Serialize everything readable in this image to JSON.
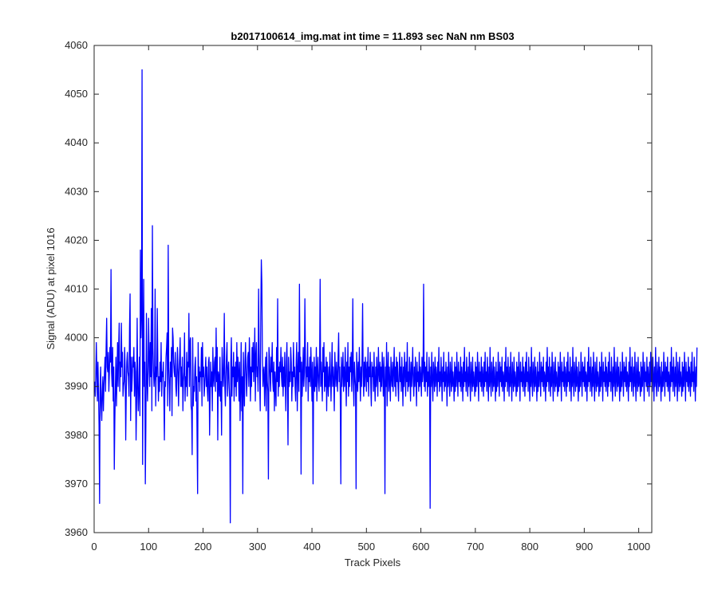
{
  "chart_data": {
    "type": "line",
    "title": "b2017100614_img.mat int time = 11.893 sec  NaN nm BS03",
    "xlabel": "Track Pixels",
    "ylabel": "Signal (ADU) at pixel 1016",
    "xlim": [
      0,
      1024
    ],
    "ylim": [
      3960,
      4060
    ],
    "xticks": [
      0,
      100,
      200,
      300,
      400,
      500,
      600,
      700,
      800,
      900,
      1000
    ],
    "yticks": [
      3960,
      3970,
      3980,
      3990,
      4000,
      4010,
      4020,
      4030,
      4040,
      4050,
      4060
    ],
    "grid": false,
    "series": [
      {
        "color": "#0000ff",
        "x_start": 1,
        "x_step": 1,
        "values": [
          3991,
          3988,
          3992,
          3999,
          3993,
          3987,
          3995,
          3989,
          3982,
          3966,
          3990,
          3994,
          3986,
          3983,
          3989,
          3992,
          3985,
          3990,
          3993,
          3996,
          3989,
          3998,
          4004,
          3994,
          3993,
          3997,
          3989,
          3993,
          3998,
          3995,
          4014,
          3993,
          3990,
          3998,
          3987,
          3994,
          3973,
          3983,
          3990,
          3996,
          3986,
          3992,
          3999,
          3990,
          3998,
          4003,
          3989,
          3995,
          3992,
          4003,
          3994,
          3997,
          3988,
          3990,
          3991,
          3998,
          3993,
          3979,
          3989,
          3995,
          3997,
          3993,
          3992,
          3988,
          4002,
          4009,
          3983,
          3996,
          3989,
          3992,
          3996,
          3994,
          3998,
          3988,
          3995,
          3993,
          3979,
          3987,
          4004,
          3990,
          3985,
          3990,
          3996,
          3984,
          4018,
          4000,
          4005,
          4055,
          3974,
          3996,
          4012,
          3990,
          3995,
          3970,
          3982,
          4005,
          3992,
          3987,
          3993,
          4004,
          3996,
          3990,
          3999,
          3992,
          4006,
          3985,
          4023,
          3998,
          3993,
          3990,
          3992,
          4010,
          3986,
          3994,
          3992,
          4006,
          3994,
          3987,
          3992,
          3989,
          3995,
          3991,
          3999,
          3988,
          3993,
          3992,
          3995,
          3988,
          3979,
          3991,
          3990,
          3996,
          3998,
          4001,
          3986,
          4019,
          3994,
          3990,
          3985,
          3995,
          3992,
          3998,
          3984,
          4002,
          4000,
          3995,
          3993,
          3992,
          3997,
          3990,
          3988,
          3993,
          3998,
          3993,
          3986,
          3993,
          3996,
          4000,
          3990,
          3994,
          3990,
          3996,
          3985,
          3991,
          3993,
          4001,
          3987,
          3992,
          3990,
          3997,
          3988,
          3995,
          3994,
          4005,
          3990,
          3999,
          4000,
          3986,
          3985,
          3976,
          4000,
          3986,
          3990,
          3989,
          3994,
          3996,
          3987,
          3992,
          3980,
          3968,
          3999,
          3991,
          3994,
          3989,
          3993,
          3992,
          3998,
          3986,
          3999,
          3992,
          3994,
          3988,
          3990,
          3993,
          3996,
          3990,
          3994,
          3989,
          3987,
          3995,
          3996,
          3980,
          3988,
          3995,
          3990,
          3993,
          3985,
          3998,
          3992,
          3990,
          3995,
          3996,
          3989,
          4002,
          3991,
          3998,
          3979,
          3993,
          3992,
          3988,
          3996,
          3987,
          3991,
          3980,
          3998,
          3994,
          3990,
          3993,
          4005,
          3990,
          3986,
          3992,
          3996,
          3999,
          3988,
          3993,
          3995,
          3990,
          3987,
          3962,
          3995,
          4000,
          3988,
          3994,
          3992,
          3997,
          3987,
          3994,
          3990,
          3995,
          3988,
          3999,
          3991,
          3996,
          3993,
          3987,
          3995,
          3983,
          3990,
          3999,
          3985,
          3992,
          3968,
          3997,
          3991,
          3986,
          3995,
          3999,
          3993,
          3988,
          3992,
          3996,
          3997,
          3990,
          4000,
          3995,
          3987,
          3994,
          3990,
          3998,
          3993,
          3999,
          3991,
          3995,
          4002,
          3987,
          3996,
          3999,
          3992,
          3994,
          3989,
          4010,
          3997,
          3991,
          3985,
          4005,
          4016,
          4011,
          3996,
          3990,
          3993,
          3994,
          3986,
          3992,
          3996,
          3985,
          3997,
          3991,
          3989,
          3971,
          3998,
          3996,
          3992,
          3989,
          3996,
          3993,
          3999,
          3991,
          3989,
          3995,
          3985,
          3993,
          3990,
          3986,
          3998,
          3991,
          4008,
          3988,
          3994,
          3990,
          3995,
          3993,
          3998,
          3992,
          3990,
          3996,
          3988,
          3994,
          3990,
          3997,
          3991,
          3985,
          3995,
          3999,
          3990,
          3978,
          3996,
          3990,
          3993,
          3991,
          3998,
          3995,
          3987,
          3993,
          3990,
          3999,
          3992,
          3994,
          3990,
          3987,
          3995,
          3999,
          3985,
          3993,
          3997,
          3989,
          4011,
          3993,
          3996,
          3972,
          3995,
          3988,
          3992,
          3998,
          3990,
          3993,
          4008,
          3996,
          3989,
          3994,
          3992,
          3999,
          3987,
          3994,
          3991,
          3996,
          3990,
          3998,
          3993,
          3987,
          3995,
          3970,
          3991,
          3996,
          3989,
          3994,
          3990,
          3998,
          3987,
          3993,
          3996,
          3991,
          3989,
          3994,
          4012,
          3990,
          3995,
          3991,
          3987,
          3998,
          3993,
          3999,
          3989,
          3994,
          3990,
          3996,
          3985,
          3995,
          3991,
          3988,
          3994,
          3990,
          3997,
          3992,
          3987,
          3993,
          3999,
          3990,
          3994,
          3991,
          3985,
          3997,
          3993,
          3990,
          3995,
          3992,
          3989,
          3996,
          4001,
          3991,
          3994,
          3988,
          3970,
          3996,
          3990,
          3993,
          3997,
          3989,
          3994,
          3990,
          3998,
          3992,
          3986,
          3995,
          3991,
          3999,
          3988,
          3994,
          3990,
          3996,
          3993,
          3997,
          3989,
          3993,
          4008,
          3991,
          3986,
          3995,
          3992,
          3990,
          3969,
          3997,
          3993,
          3989,
          3995,
          3991,
          3998,
          3992,
          3987,
          3994,
          3990,
          3996,
          4007,
          3992,
          3988,
          3995,
          3990,
          3996,
          3993,
          3989,
          3995,
          3991,
          3998,
          3988,
          3994,
          3992,
          3997,
          3990,
          3986,
          3995,
          3992,
          3994,
          3989,
          3997,
          3991,
          3987,
          3994,
          3990,
          3996,
          3992,
          3988,
          3998,
          3993,
          3991,
          3995,
          3989,
          3994,
          3990,
          3997,
          3993,
          3988,
          3996,
          3991,
          3968,
          3994,
          3990,
          3999,
          3986,
          3993,
          3997,
          3989,
          3994,
          3991,
          3987,
          3996,
          3992,
          3990,
          3995,
          3989,
          3993,
          3998,
          3990,
          3994,
          3988,
          3996,
          3991,
          3995,
          3990,
          3987,
          3993,
          3997,
          3991,
          3994,
          3989,
          3996,
          3992,
          3986,
          3994,
          3990,
          3997,
          3993,
          3988,
          3995,
          3991,
          3999,
          3989,
          3993,
          3990,
          3996,
          3992,
          3987,
          3995,
          3990,
          3993,
          3998,
          3991,
          3988,
          3994,
          3990,
          3996,
          3992,
          3986,
          3995,
          3991,
          3993,
          3989,
          3997,
          3990,
          3994,
          3992,
          3988,
          3996,
          3991,
          3993,
          4011,
          3990,
          3995,
          3989,
          3994,
          3991,
          3997,
          3988,
          3993,
          3990,
          3996,
          3992,
          3965,
          3994,
          3990,
          3997,
          3991,
          3987,
          3995,
          3993,
          3989,
          3996,
          3990,
          3994,
          3992,
          3988,
          3995,
          3991,
          3998,
          3989,
          3993,
          3990,
          3996,
          3992,
          3987,
          3994,
          3991,
          3997,
          3989,
          3993,
          3990,
          3995,
          3992,
          3986,
          3994,
          3990,
          3997,
          3991,
          3988,
          3995,
          3992,
          3989,
          3996,
          3990,
          3993,
          3991,
          3987,
          3995,
          3989,
          3994,
          3990,
          3997,
          3992,
          3988,
          3995,
          3991,
          3993,
          3990,
          3996,
          3989,
          3994,
          3992,
          3987,
          3995,
          3990,
          3998,
          3991,
          3993,
          3989,
          3996,
          3992,
          3988,
          3994,
          3990,
          3997,
          3991,
          3987,
          3995,
          3992,
          3989,
          3996,
          3990,
          3993,
          3991,
          3988,
          3995,
          3989,
          3994,
          3990,
          3997,
          3992,
          3987,
          3995,
          3991,
          3993,
          3990,
          3996,
          3989,
          3994,
          3992,
          3988,
          3995,
          3990,
          3997,
          3991,
          3993,
          3989,
          3996,
          3992,
          3987,
          3994,
          3990,
          3998,
          3991,
          3988,
          3995,
          3992,
          3989,
          3996,
          3990,
          3994,
          3991,
          3987,
          3995,
          3989,
          3993,
          3990,
          3997,
          3992,
          3988,
          3995,
          3991,
          3994,
          3990,
          3996,
          3989,
          3993,
          3992,
          3987,
          3995,
          3990,
          3998,
          3991,
          3994,
          3989,
          3996,
          3992,
          3988,
          3994,
          3990,
          3997,
          3991,
          3987,
          3995,
          3992,
          3989,
          3996,
          3990,
          3993,
          3991,
          3988,
          3995,
          3989,
          3994,
          3990,
          3997,
          3992,
          3987,
          3995,
          3991,
          3993,
          3990,
          3996,
          3989,
          3994,
          3992,
          3988,
          3995,
          3990,
          3997,
          3991,
          3993,
          3989,
          3996,
          3992,
          3987,
          3994,
          3990,
          3998,
          3991,
          3988,
          3995,
          3992,
          3989,
          3996,
          3990,
          3994,
          3991,
          3987,
          3995,
          3989,
          3993,
          3990,
          3997,
          3992,
          3988,
          3995,
          3991,
          3994,
          3990,
          3996,
          3989,
          3993,
          3992,
          3987,
          3995,
          3990,
          3998,
          3991,
          3994,
          3989,
          3996,
          3992,
          3988,
          3994,
          3990,
          3997,
          3991,
          3987,
          3995,
          3992,
          3989,
          3996,
          3990,
          3993,
          3991,
          3988,
          3995,
          3989,
          3994,
          3990,
          3997,
          3992,
          3987,
          3995,
          3991,
          3993,
          3990,
          3996,
          3989,
          3994,
          3992,
          3988,
          3995,
          3990,
          3997,
          3991,
          3993,
          3989,
          3996,
          3992,
          3987,
          3994,
          3990,
          3998,
          3991,
          3988,
          3995,
          3992,
          3989,
          3996,
          3990,
          3994,
          3991,
          3987,
          3995,
          3989,
          3993,
          3990,
          3997,
          3992,
          3988,
          3995,
          3991,
          3994,
          3990,
          3996,
          3989,
          3993,
          3992,
          3987,
          3995,
          3990,
          3998,
          3991,
          3994,
          3989,
          3996,
          3992,
          3988,
          3994,
          3990,
          3997,
          3991,
          3987,
          3995,
          3992,
          3989,
          3996,
          3990,
          3993,
          3991,
          3988,
          3995,
          3989,
          3994,
          3990,
          3997,
          3992,
          3987,
          3995,
          3991,
          3993,
          3990,
          3996,
          3989,
          3994,
          3992,
          3988,
          3995,
          3990,
          3997,
          3991,
          3993,
          3989,
          3996,
          3992,
          3987,
          3994,
          3990,
          3998,
          3991,
          3988,
          3995,
          3992,
          3989,
          3996,
          3990,
          3994,
          3991,
          3987,
          3995,
          3989,
          3993,
          3990,
          3997,
          3992,
          3988,
          3995,
          3991,
          3994,
          3990,
          3996,
          3989,
          3993,
          3992,
          3987,
          3995,
          3990,
          3998,
          3991,
          3994,
          3989,
          3996,
          3992,
          3988,
          3994,
          3990,
          3997,
          3991,
          3987,
          3995,
          3992,
          3989,
          3996,
          3990,
          3993,
          3991,
          3988,
          3995,
          3989,
          3994,
          3990,
          3997,
          3992,
          3987,
          3995,
          3991,
          3993,
          3990,
          3996,
          3989,
          3994,
          3992,
          3988,
          3995,
          3990,
          3997,
          3991,
          3993,
          3989,
          3996,
          3992,
          3987,
          3994,
          3990,
          3998,
          3991,
          3988,
          3995,
          3992,
          3989,
          3996,
          3990,
          3994,
          3991,
          3987,
          3995,
          3989,
          3993,
          3990,
          3997,
          3992,
          3988,
          3995,
          3991,
          3994,
          3990,
          3996,
          3989,
          3993,
          3992,
          3987,
          3995,
          3990,
          3998,
          3991,
          3994,
          3989,
          3996,
          3992,
          3988,
          3994,
          3990,
          3997,
          3991,
          3987,
          3995,
          3992,
          3989,
          3996,
          3990,
          3993,
          3991,
          3988,
          3995,
          3989,
          3994,
          3990,
          3997,
          3992,
          3987,
          3995,
          3991,
          3993,
          3990,
          3996,
          3989,
          3994,
          3992,
          3988,
          3995,
          3990,
          3997,
          3991,
          3993,
          3989,
          3996,
          3992,
          3987,
          3994,
          3990,
          3998
        ]
      }
    ]
  }
}
